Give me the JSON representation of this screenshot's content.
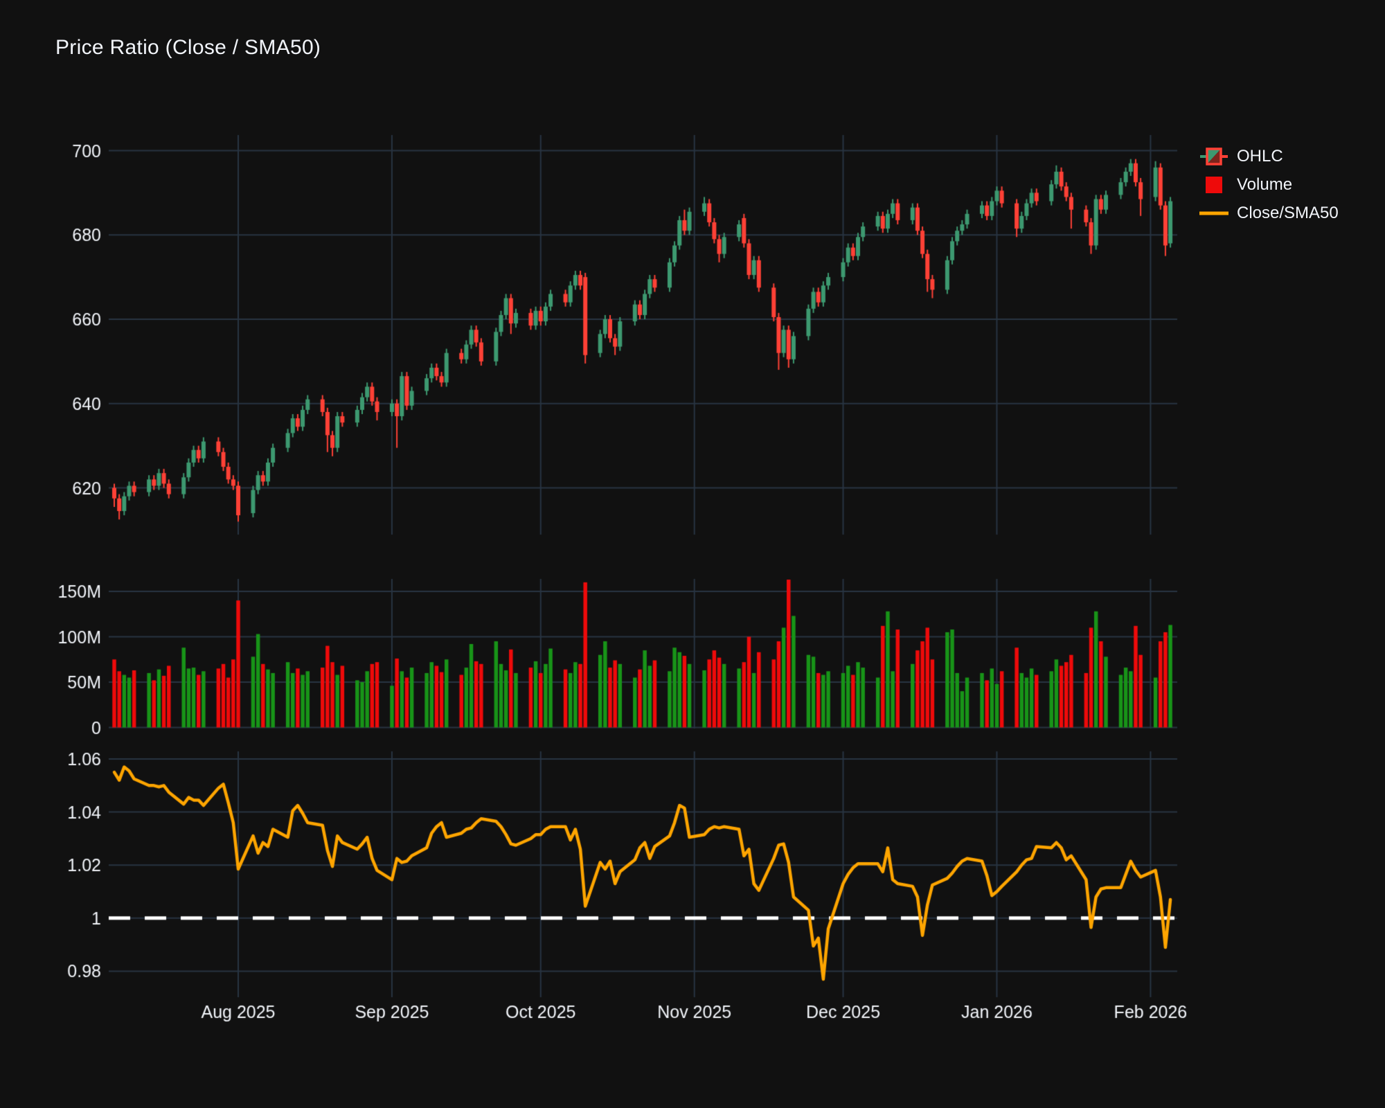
{
  "title": "Price Ratio (Close / SMA50)",
  "legend": {
    "items": [
      {
        "id": "ohlc",
        "label": "OHLC"
      },
      {
        "id": "volume",
        "label": "Volume"
      },
      {
        "id": "ratio",
        "label": "Close/SMA50"
      }
    ]
  },
  "colors": {
    "background": "#111111",
    "grid": "#283442",
    "text": "#f2f5fa",
    "candle_up": "#3D9970",
    "candle_up_dark": "#7f241c",
    "candle_down": "#FF4136",
    "volume_up": "#189418",
    "volume_down": "#ee0a0a",
    "ratio_line": "#FFA500",
    "reference_line": "#ffffff"
  },
  "chart_data": {
    "type": "candlestick",
    "title": "Price Ratio (Close / SMA50)",
    "x_start_date": "2025-07-07",
    "x_frequency": "weekdays",
    "grid": true,
    "legend_position": "top-right",
    "x_ticks": [
      {
        "date": "2025-08-01",
        "label": "Aug 2025"
      },
      {
        "date": "2025-09-01",
        "label": "Sep 2025"
      },
      {
        "date": "2025-10-01",
        "label": "Oct 2025"
      },
      {
        "date": "2025-11-01",
        "label": "Nov 2025"
      },
      {
        "date": "2025-12-01",
        "label": "Dec 2025"
      },
      {
        "date": "2026-01-01",
        "label": "Jan 2026"
      },
      {
        "date": "2026-02-01",
        "label": "Feb 2026"
      }
    ],
    "panels": {
      "price": {
        "type": "ohlc-candles",
        "ylim": [
          609,
          704
        ],
        "yticks": [
          620,
          640,
          660,
          680,
          700
        ],
        "ytick_labels": [
          "620",
          "640",
          "660",
          "680",
          "700"
        ],
        "open": [
          620,
          617.5,
          614.5,
          618,
          620.5,
          619,
          622,
          620.5,
          623.5,
          621,
          618.5,
          622.5,
          626,
          629,
          627,
          631,
          628.5,
          625,
          622,
          620.5,
          614,
          619.5,
          623,
          621.5,
          626,
          629.5,
          633,
          636.5,
          634.5,
          638.5,
          641,
          638,
          632.5,
          629.5,
          637,
          635.5,
          638.5,
          641.5,
          644,
          640.5,
          638,
          640,
          637,
          646.5,
          639.5,
          643,
          646,
          648.5,
          646.5,
          645,
          652,
          650.5,
          654,
          657.5,
          654.5,
          650,
          657,
          661,
          665,
          659,
          661.5,
          658.5,
          662,
          659.5,
          663,
          666,
          664,
          668,
          670.5,
          670,
          652,
          656.5,
          660,
          655.5,
          653.5,
          659.5,
          663.5,
          661,
          666,
          669.5,
          667.5,
          673.5,
          677.5,
          683.5,
          681,
          685.5,
          687.5,
          683,
          679,
          675.5,
          679.5,
          684,
          678,
          670.5,
          674,
          667.5,
          660.5,
          652,
          657.5,
          650.5,
          656,
          662.5,
          666.5,
          664,
          668,
          670,
          673.5,
          677,
          675,
          679.5,
          682,
          684.5,
          681.5,
          685,
          687.5,
          683.5,
          686.5,
          681,
          675.5,
          669.5,
          667,
          674,
          678.5,
          681,
          682.5,
          685,
          687,
          684.5,
          688,
          690.5,
          687.5,
          681.5,
          684.5,
          687.5,
          690,
          688,
          692,
          695,
          691.5,
          689,
          686,
          683,
          677.5,
          688.5,
          686,
          689.5,
          692.5,
          695,
          697,
          692.5,
          689,
          696,
          687,
          678
        ],
        "high": [
          621,
          618.5,
          619,
          621.5,
          621.5,
          623,
          623,
          624.5,
          624.5,
          622,
          623.5,
          627,
          630,
          630,
          632,
          632,
          629.5,
          626,
          623,
          621.5,
          620.5,
          624,
          624,
          627,
          630.5,
          634,
          637.5,
          637.5,
          639.5,
          642,
          642,
          639,
          633.5,
          638,
          638,
          639.5,
          642.5,
          645,
          645,
          641.5,
          641,
          641,
          647.5,
          647.5,
          644,
          647,
          649.5,
          649.5,
          647.5,
          653,
          653,
          655,
          658.5,
          658.5,
          655.5,
          658,
          662,
          666,
          666,
          662.5,
          662.5,
          663,
          663,
          664,
          667,
          667,
          669,
          671.5,
          671.5,
          671,
          657.5,
          661,
          661,
          656.5,
          660.5,
          664.5,
          664.5,
          667,
          670.5,
          670.5,
          674.5,
          678.5,
          684.5,
          686,
          686.5,
          689,
          688.5,
          684,
          680,
          680.5,
          683.5,
          685,
          679,
          675,
          675,
          668.5,
          661.5,
          658.5,
          658.5,
          657,
          663.5,
          667.5,
          667.5,
          669,
          671,
          674.5,
          678,
          678,
          680.5,
          683,
          685.5,
          685.5,
          686,
          688.5,
          688.5,
          687.5,
          687.5,
          682,
          676.5,
          670.5,
          675,
          679.5,
          682,
          683.5,
          686,
          688,
          688,
          689,
          691.5,
          691.5,
          688.5,
          685.5,
          688.5,
          691,
          691,
          693,
          696.5,
          696,
          692.5,
          690,
          687,
          684,
          689.5,
          689.5,
          690.5,
          693.5,
          696,
          698,
          698,
          693.5,
          697.5,
          697,
          688,
          689
        ],
        "low": [
          615.5,
          612.5,
          613.5,
          617,
          618,
          618,
          619.5,
          619.5,
          620,
          617.5,
          617.5,
          621.5,
          625,
          626,
          626,
          627.5,
          624,
          621,
          619.5,
          612,
          613,
          618.5,
          620.5,
          620.5,
          625,
          628.5,
          632,
          633.5,
          633.5,
          637.5,
          637,
          628.5,
          627.5,
          628.5,
          634.5,
          634.5,
          637.5,
          640.5,
          639.5,
          636,
          637,
          629.5,
          636,
          638.5,
          638.5,
          642,
          645,
          645.5,
          644,
          644,
          649.5,
          649.5,
          653,
          653.5,
          649,
          649,
          656,
          660,
          656.5,
          658,
          657.5,
          657.5,
          658.5,
          658.5,
          662,
          663,
          663,
          667,
          667,
          649.5,
          651,
          655.5,
          654.5,
          651.5,
          652.5,
          658.5,
          660,
          660,
          665,
          666.5,
          666.5,
          672.5,
          676.5,
          680,
          680,
          684.5,
          682,
          678,
          673.5,
          674.5,
          678.5,
          677,
          669.5,
          669.5,
          666.5,
          659.5,
          648,
          651,
          648.5,
          649.5,
          655,
          661.5,
          663,
          663,
          667,
          669,
          672.5,
          674,
          674,
          678.5,
          681,
          680.5,
          680.5,
          684,
          682.5,
          682.5,
          680,
          674.5,
          666.5,
          665,
          666,
          673,
          677.5,
          680,
          681.5,
          684,
          683.5,
          683.5,
          687,
          686.5,
          679.5,
          680.5,
          683.5,
          686.5,
          687,
          687,
          691,
          690.5,
          688,
          681.5,
          682,
          675.5,
          676.5,
          685,
          685,
          688.5,
          691.5,
          694,
          691.5,
          684.5,
          688,
          686,
          675,
          677
        ],
        "close": [
          617.5,
          614.5,
          618,
          620.5,
          619,
          622,
          620.5,
          623.5,
          621,
          618.5,
          622.5,
          626,
          629,
          627,
          631,
          628.5,
          625,
          622,
          620.5,
          613.5,
          619.5,
          623,
          621.5,
          626,
          629.5,
          633,
          636.5,
          634.5,
          638.5,
          641,
          638,
          632.5,
          629.5,
          637,
          635.5,
          638.5,
          641.5,
          644,
          640.5,
          638,
          640,
          637,
          646.5,
          639.5,
          643,
          646,
          648.5,
          646.5,
          645,
          652,
          650.5,
          654,
          657.5,
          654.5,
          650,
          657,
          661,
          665,
          659,
          661.5,
          658.5,
          662,
          659.5,
          663,
          666,
          664,
          668,
          670.5,
          668,
          651.5,
          656.5,
          660,
          655.5,
          653.5,
          659.5,
          663.5,
          661,
          666,
          669.5,
          667.5,
          673.5,
          677.5,
          683.5,
          681,
          685.5,
          687.5,
          683,
          679,
          675.5,
          679.5,
          682.5,
          678,
          670.5,
          674,
          667.5,
          660.5,
          652,
          657.5,
          650.5,
          656,
          662.5,
          666.5,
          664,
          668,
          670,
          673.5,
          677,
          675,
          679.5,
          682,
          684.5,
          681.5,
          685,
          687.5,
          683.5,
          686.5,
          681,
          675.5,
          669.5,
          667,
          674,
          678.5,
          681,
          682.5,
          685,
          687,
          684.5,
          688,
          690.5,
          687.5,
          681.5,
          684.5,
          687.5,
          690,
          688,
          692,
          695,
          691.5,
          689,
          686,
          683,
          677.5,
          688.5,
          686,
          689.5,
          692.5,
          695,
          697,
          692.5,
          688.5,
          696,
          687,
          677.5,
          688
        ]
      },
      "volume": {
        "type": "bar",
        "unit": "millions-of-shares",
        "ylim": [
          0,
          164
        ],
        "yticks": [
          0,
          50,
          100,
          150
        ],
        "ytick_labels": [
          "0",
          "50M",
          "100M",
          "150M"
        ],
        "values": [
          75,
          62,
          58,
          55,
          63,
          60,
          52,
          64,
          57,
          68,
          88,
          65,
          66,
          58,
          62,
          65,
          70,
          55,
          75,
          140,
          78,
          103,
          70,
          64,
          60,
          72,
          60,
          65,
          58,
          62,
          66,
          90,
          72,
          58,
          68,
          52,
          50,
          62,
          70,
          72,
          46,
          76,
          62,
          55,
          66,
          60,
          72,
          68,
          61,
          75,
          58,
          66,
          92,
          73,
          70,
          95,
          70,
          63,
          86,
          60,
          66,
          73,
          60,
          70,
          87,
          64,
          60,
          72,
          70,
          160,
          80,
          95,
          66,
          74,
          70,
          55,
          64,
          85,
          68,
          74,
          62,
          88,
          83,
          79,
          70,
          63,
          75,
          85,
          77,
          70,
          65,
          72,
          100,
          60,
          83,
          75,
          95,
          110,
          163,
          123,
          80,
          78,
          60,
          58,
          62,
          60,
          68,
          58,
          72,
          66,
          55,
          112,
          128,
          62,
          108,
          70,
          85,
          95,
          110,
          75,
          105,
          108,
          60,
          40,
          55,
          60,
          52,
          65,
          48,
          62,
          88,
          60,
          55,
          65,
          58,
          62,
          75,
          68,
          72,
          80,
          60,
          110,
          128,
          95,
          78,
          58,
          66,
          62,
          112,
          80,
          55,
          95,
          105,
          113
        ]
      },
      "ratio": {
        "type": "line",
        "name": "Close/SMA50",
        "ylim": [
          0.9745,
          1.0628
        ],
        "yticks": [
          0.98,
          1,
          1.02,
          1.04,
          1.06
        ],
        "ytick_labels": [
          "0.98",
          "1",
          "1.02",
          "1.04",
          "1.06"
        ],
        "reference_line": 1.0,
        "values": [
          1.055,
          1.052,
          1.057,
          1.0555,
          1.0525,
          1.05,
          1.05,
          1.0495,
          1.05,
          1.0475,
          1.043,
          1.0455,
          1.0445,
          1.0445,
          1.0425,
          1.049,
          1.0505,
          1.0435,
          1.036,
          1.0185,
          1.031,
          1.0245,
          1.0285,
          1.027,
          1.0335,
          1.0305,
          1.0405,
          1.0425,
          1.0395,
          1.036,
          1.035,
          1.0255,
          1.0195,
          1.031,
          1.0285,
          1.026,
          1.028,
          1.0305,
          1.0225,
          1.018,
          1.0145,
          1.0225,
          1.021,
          1.0215,
          1.0235,
          1.0265,
          1.032,
          1.0345,
          1.036,
          1.0305,
          1.032,
          1.0335,
          1.034,
          1.036,
          1.0375,
          1.0365,
          1.0345,
          1.0315,
          1.028,
          1.0275,
          1.03,
          1.0315,
          1.0315,
          1.0335,
          1.0345,
          1.0345,
          1.0295,
          1.0335,
          1.026,
          1.0045,
          1.021,
          1.0185,
          1.0215,
          1.013,
          1.0175,
          1.022,
          1.0265,
          1.0285,
          1.0225,
          1.027,
          1.031,
          1.036,
          1.0425,
          1.0415,
          1.0305,
          1.0315,
          1.0335,
          1.0345,
          1.034,
          1.0345,
          1.0335,
          1.0235,
          1.026,
          1.013,
          1.0105,
          1.0225,
          1.0275,
          1.028,
          1.021,
          1.008,
          1.003,
          0.9895,
          0.9925,
          0.977,
          0.996,
          1.013,
          1.0165,
          1.019,
          1.0205,
          1.0205,
          1.0205,
          1.0175,
          1.0265,
          1.0145,
          1.013,
          1.012,
          1.008,
          0.9935,
          1.005,
          1.0125,
          1.015,
          1.017,
          1.0195,
          1.0215,
          1.0225,
          1.0215,
          1.016,
          1.0085,
          1.01,
          1.012,
          1.0175,
          1.02,
          1.022,
          1.0225,
          1.027,
          1.0265,
          1.0285,
          1.0265,
          1.022,
          1.0235,
          1.0145,
          0.9965,
          1.008,
          1.011,
          1.0115,
          1.0115,
          1.0165,
          1.0215,
          1.018,
          1.0155,
          1.018,
          1.008,
          0.989,
          1.007
        ]
      }
    }
  }
}
